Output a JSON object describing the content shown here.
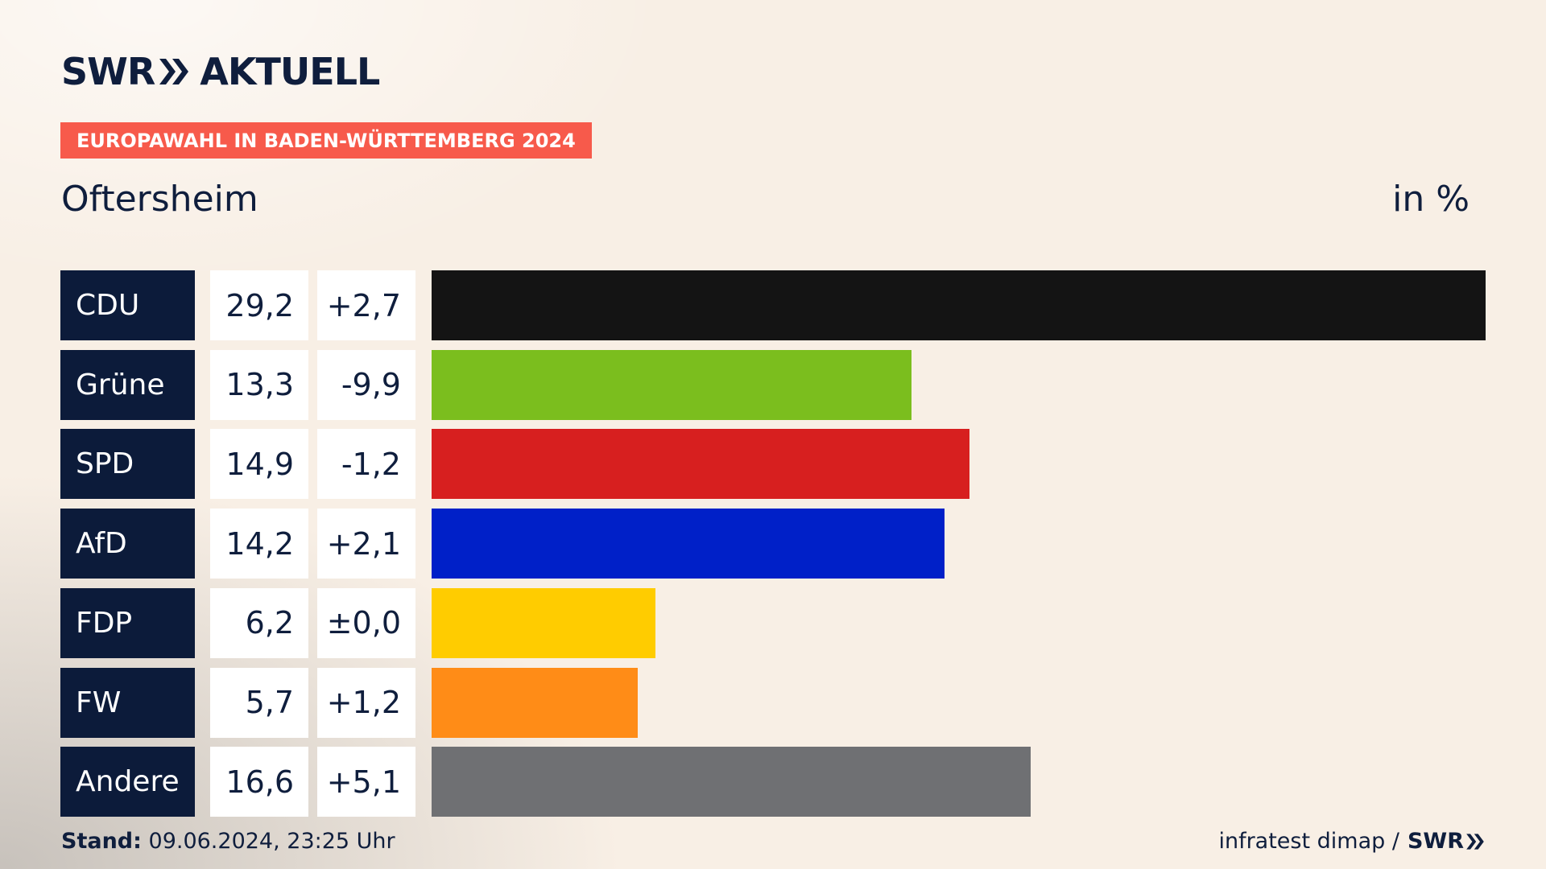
{
  "header": {
    "logo_brand": "SWR",
    "logo_product": "AKTUELL",
    "banner": "EUROPAWAHL IN BADEN-WÜRTTEMBERG 2024",
    "region": "Oftersheim",
    "unit": "in %"
  },
  "footer": {
    "stand_label": "Stand:",
    "stand_value": "09.06.2024, 23:25 Uhr",
    "source": "infratest dimap /",
    "source_brand": "SWR"
  },
  "chart_data": {
    "type": "bar",
    "orientation": "horizontal",
    "title": "Oftersheim",
    "unit": "in %",
    "xlim": [
      0,
      29.2
    ],
    "categories": [
      "CDU",
      "Grüne",
      "SPD",
      "AfD",
      "FDP",
      "FW",
      "Andere"
    ],
    "values": [
      29.2,
      13.3,
      14.9,
      14.2,
      6.2,
      5.7,
      16.6
    ],
    "value_labels": [
      "29,2",
      "13,3",
      "14,9",
      "14,2",
      "6,2",
      "5,7",
      "16,6"
    ],
    "diff_labels": [
      "+2,7",
      "-9,9",
      "-1,2",
      "+2,1",
      "±0,0",
      "+1,2",
      "+5,1"
    ],
    "colors": [
      "#141414",
      "#7bbe1e",
      "#d71f1f",
      "#0020c8",
      "#ffcc00",
      "#ff8c17",
      "#6f7073"
    ]
  }
}
